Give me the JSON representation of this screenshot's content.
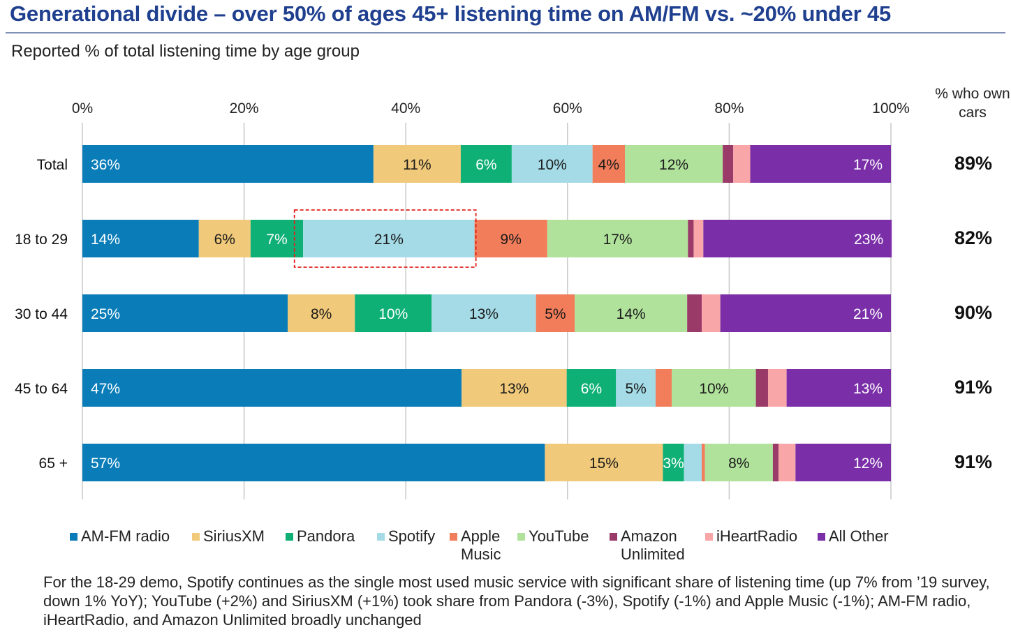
{
  "title": "Generational divide – over 50% of ages 45+ listening time on AM/FM vs. ~20% under 45",
  "subtitle": "Reported % of total listening time by age group",
  "own_cars_header": "% who own cars",
  "footnote": "For the 18-29 demo, Spotify continues as the single most used music service with significant share of listening time (up 7% from ’19 survey, down 1% YoY); YouTube (+2%) and SiriusXM (+1%) took share from Pandora (-3%), Spotify (-1%) and Apple Music (-1%); AM-FM radio, iHeartRadio, and Amazon Unlimited broadly unchanged",
  "colors": {
    "AM-FM radio": "#0a7db8",
    "SiriusXM": "#f0c97a",
    "Pandora": "#0fb076",
    "Spotify": "#a4dbe6",
    "Apple Music": "#f27d5a",
    "YouTube": "#b0e29c",
    "Amazon Unlimited": "#9a3a68",
    "iHeartRadio": "#f9a6a8",
    "All Other": "#7a2fa8",
    "highlight": "#e0201e"
  },
  "chart_data": {
    "type": "bar",
    "orientation": "horizontal",
    "stacked": true,
    "xlim": [
      0,
      100
    ],
    "x_ticks": [
      "0%",
      "20%",
      "40%",
      "60%",
      "80%",
      "100%"
    ],
    "categories": [
      "Total",
      "18 to 29",
      "30 to 44",
      "45 to 64",
      "65 +"
    ],
    "series": [
      {
        "name": "AM-FM radio",
        "values": [
          36,
          14.4,
          25.4,
          46.9,
          57.2
        ],
        "labels": [
          "36%",
          "14%",
          "25%",
          "47%",
          "57%"
        ],
        "label_color": "light"
      },
      {
        "name": "SiriusXM",
        "values": [
          10.8,
          6.4,
          8.3,
          13.0,
          14.6
        ],
        "labels": [
          "11%",
          "6%",
          "8%",
          "13%",
          "15%"
        ],
        "label_color": "dark"
      },
      {
        "name": "Pandora",
        "values": [
          6.3,
          6.5,
          9.5,
          6.1,
          2.6
        ],
        "labels": [
          "6%",
          "7%",
          "10%",
          "6%",
          "3%"
        ],
        "label_color": "light"
      },
      {
        "name": "Spotify",
        "values": [
          10.0,
          21.2,
          12.9,
          4.9,
          2.2
        ],
        "labels": [
          "10%",
          "21%",
          "13%",
          "5%",
          ""
        ],
        "label_color": "dark"
      },
      {
        "name": "Apple Music",
        "values": [
          4.0,
          9.0,
          4.8,
          2.0,
          0.4
        ],
        "labels": [
          "4%",
          "9%",
          "5%",
          "",
          ""
        ],
        "label_color": "dark"
      },
      {
        "name": "YouTube",
        "values": [
          12.1,
          17.4,
          13.9,
          10.4,
          8.4
        ],
        "labels": [
          "12%",
          "17%",
          "14%",
          "10%",
          "8%"
        ],
        "label_color": "dark"
      },
      {
        "name": "Amazon Unlimited",
        "values": [
          1.3,
          0.7,
          1.8,
          1.5,
          0.7
        ],
        "labels": [
          "",
          "",
          "",
          "",
          ""
        ],
        "label_color": "light"
      },
      {
        "name": "iHeartRadio",
        "values": [
          2.1,
          1.2,
          2.3,
          2.3,
          2.1
        ],
        "labels": [
          "",
          "",
          "",
          "",
          ""
        ],
        "label_color": "dark"
      },
      {
        "name": "All Other",
        "values": [
          17.4,
          23.3,
          21.1,
          12.9,
          11.8
        ],
        "labels": [
          "17%",
          "23%",
          "21%",
          "13%",
          "12%"
        ],
        "label_color": "light"
      }
    ],
    "own_cars": [
      "89%",
      "82%",
      "90%",
      "91%",
      "91%"
    ],
    "highlight": {
      "category": "18 to 29",
      "series": [
        "Pandora",
        "Spotify"
      ],
      "style": "dashed-red-box"
    },
    "legend": {
      "placement": "bottom"
    },
    "grid": true
  }
}
